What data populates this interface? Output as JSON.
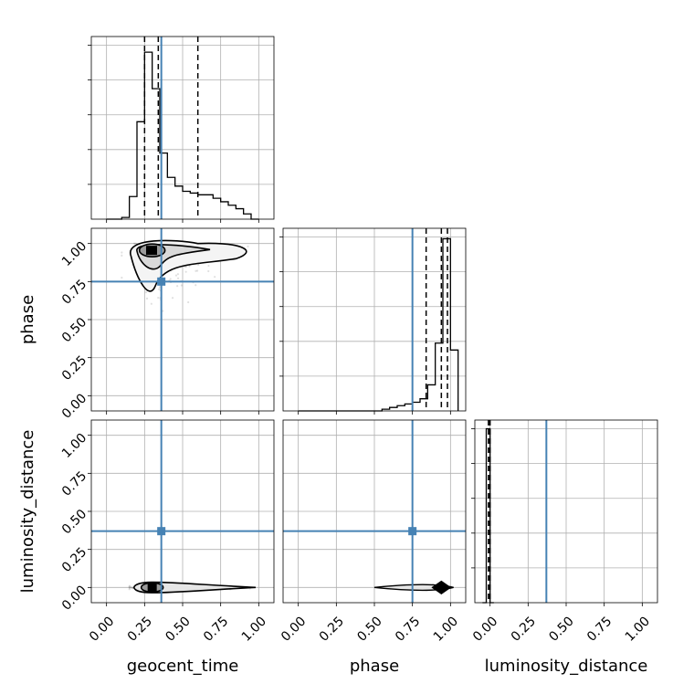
{
  "chart_data": {
    "type": "corner",
    "parameters": [
      "geocent_time",
      "phase",
      "luminosity_distance"
    ],
    "axis_range": [
      -0.1,
      1.1
    ],
    "tick_values": [
      0.0,
      0.25,
      0.5,
      0.75,
      1.0
    ],
    "tick_labels": [
      "0.00",
      "0.25",
      "0.50",
      "0.75",
      "1.00"
    ],
    "grid": true,
    "truth": {
      "values": [
        0.36,
        0.75,
        0.37
      ],
      "color": "#4682b4"
    },
    "histograms": [
      {
        "parameter": "geocent_time",
        "bin_edges": [
          0.0,
          0.05,
          0.1,
          0.15,
          0.2,
          0.25,
          0.3,
          0.35,
          0.4,
          0.45,
          0.5,
          0.55,
          0.6,
          0.65,
          0.7,
          0.75,
          0.8,
          0.85,
          0.9,
          0.95,
          1.0
        ],
        "heights": [
          0.0,
          0.0,
          0.01,
          0.13,
          0.56,
          0.96,
          0.75,
          0.38,
          0.24,
          0.19,
          0.16,
          0.15,
          0.14,
          0.14,
          0.12,
          0.1,
          0.08,
          0.06,
          0.03,
          0.0
        ],
        "quantiles": [
          0.25,
          0.34,
          0.6
        ]
      },
      {
        "parameter": "phase",
        "bin_edges": [
          0.0,
          0.05,
          0.1,
          0.15,
          0.2,
          0.25,
          0.3,
          0.35,
          0.4,
          0.45,
          0.5,
          0.55,
          0.6,
          0.65,
          0.7,
          0.75,
          0.8,
          0.85,
          0.9,
          0.95,
          1.0,
          1.05
        ],
        "heights": [
          0.0,
          0.0,
          0.0,
          0.0,
          0.0,
          0.0,
          0.0,
          0.0,
          0.0,
          0.0,
          0.0,
          0.01,
          0.02,
          0.03,
          0.04,
          0.05,
          0.07,
          0.15,
          0.39,
          0.99,
          0.35
        ],
        "quantiles": [
          0.84,
          0.94,
          0.98
        ]
      },
      {
        "parameter": "luminosity_distance",
        "bin_edges": [
          -0.05,
          -0.025,
          0.0,
          0.025
        ],
        "heights": [
          0.0,
          1.0,
          0.0
        ],
        "quantiles": [
          -0.01,
          -0.01,
          0.0
        ]
      }
    ],
    "scatter": [
      {
        "x": "geocent_time",
        "y": "phase",
        "mode": "posterior_2d",
        "center": [
          0.3,
          0.95
        ]
      },
      {
        "x": "geocent_time",
        "y": "luminosity_distance",
        "mode": "posterior_2d",
        "center": [
          0.3,
          0.0
        ]
      },
      {
        "x": "phase",
        "y": "luminosity_distance",
        "mode": "posterior_2d",
        "center": [
          0.94,
          0.0
        ]
      }
    ]
  }
}
